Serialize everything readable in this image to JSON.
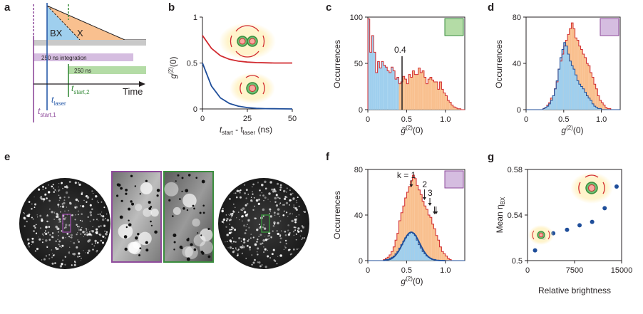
{
  "letters": {
    "a": "a",
    "b": "b",
    "c": "c",
    "d": "d",
    "e": "e",
    "f": "f",
    "g": "g"
  },
  "colors": {
    "purple": "#8e4a9b",
    "green": "#3a8d3d",
    "blue": "#2a5caa",
    "red": "#d12a2f",
    "orange_fill": "#f9c08f",
    "blue_fill": "#9fcfee",
    "purple_fill": "#d5bde0",
    "green_fill": "#b4dca6",
    "navy": "#1f4e9a"
  },
  "panel_a": {
    "bx": "BX",
    "x": "X",
    "integration": "250 ns integration",
    "green_bar": "250 ns",
    "t_laser": "t",
    "t_laser_sub": "laser",
    "t_start2": "t",
    "t_start2_sub": "start,2",
    "t_start1": "t",
    "t_start1_sub": "start,1",
    "time": "Time"
  },
  "panel_b": {
    "ylabel": "g",
    "ylabel_sup": "(2)",
    "ylabel_tail": "(0)",
    "xlabel_t": "t",
    "xlabel_start": "start",
    "xlabel_minus": " - t",
    "xlabel_laser": "laser",
    "xlabel_unit": " (ns)",
    "yticks": [
      "1",
      "0.5",
      "0"
    ],
    "xticks": [
      "0",
      "25",
      "50"
    ]
  },
  "panel_c": {
    "ylabel": "Occurrences",
    "xlabel": "g̃",
    "xlabel_sup": "(2)",
    "xlabel_tail": "(0)",
    "threshold": "0.4",
    "yticks": [
      "100",
      "50",
      "0"
    ],
    "xticks": [
      "0",
      "0.5",
      "1.0"
    ]
  },
  "panel_d": {
    "ylabel": "Occurrences",
    "xlabel": "g",
    "xlabel_sup": "(2)",
    "xlabel_tail": "(0)",
    "yticks": [
      "80",
      "40",
      "0"
    ],
    "xticks": [
      "0",
      "0.5",
      "1.0"
    ]
  },
  "panel_f": {
    "ylabel": "Occurrences",
    "xlabel": "g",
    "xlabel_sup": "(2)",
    "xlabel_tail": "(0)",
    "k1": "k = 1",
    "k2": "2",
    "k3": "3",
    "yticks": [
      "80",
      "40",
      "0"
    ],
    "xticks": [
      "0",
      "0.5",
      "1.0"
    ]
  },
  "panel_g": {
    "ylabel": "Mean η",
    "ylabel_sub": "BX",
    "xlabel": "Relative brightness",
    "yticks": [
      "0.58",
      "0.54",
      "0.5"
    ],
    "xticks": [
      "0",
      "7500",
      "15000"
    ]
  },
  "chart_data": [
    {
      "panel": "b",
      "type": "line",
      "xlabel": "t_start - t_laser (ns)",
      "ylabel": "g(2)(0)",
      "xlim": [
        0,
        50
      ],
      "ylim": [
        0,
        1
      ],
      "series": [
        {
          "color": "#d12a2f",
          "x": [
            0,
            5,
            10,
            15,
            20,
            25,
            30,
            35,
            40,
            45,
            50
          ],
          "y": [
            0.8,
            0.66,
            0.58,
            0.54,
            0.52,
            0.51,
            0.505,
            0.502,
            0.5,
            0.5,
            0.5
          ]
        },
        {
          "color": "#1f4e9a",
          "x": [
            0,
            5,
            10,
            15,
            20,
            25,
            30,
            35,
            40,
            45,
            50
          ],
          "y": [
            0.5,
            0.25,
            0.12,
            0.06,
            0.03,
            0.015,
            0.007,
            0.003,
            0.002,
            0.001,
            0.0
          ]
        }
      ]
    },
    {
      "panel": "c",
      "type": "bar",
      "xlabel": "g~(2)(0)",
      "ylabel": "Occurrences",
      "xlim": [
        0,
        1.25
      ],
      "ylim": [
        0,
        100
      ],
      "threshold": 0.4,
      "bin_width": 0.025,
      "values": [
        98,
        62,
        80,
        62,
        40,
        52,
        45,
        52,
        48,
        46,
        42,
        40,
        46,
        42,
        33,
        35,
        28,
        30,
        36,
        33,
        28,
        38,
        35,
        42,
        38,
        38,
        45,
        40,
        42,
        35,
        28,
        33,
        35,
        32,
        30,
        30,
        22,
        30,
        22,
        18,
        15,
        10,
        8,
        5,
        3,
        2,
        1,
        1,
        0,
        0
      ]
    },
    {
      "panel": "d",
      "type": "bar",
      "xlabel": "g(2)(0)",
      "ylabel": "Occurrences",
      "xlim": [
        0,
        1.25
      ],
      "ylim": [
        0,
        80
      ],
      "bin_width": 0.025,
      "series": [
        {
          "name": "",
          "color": "#d12a2f",
          "values": [
            0,
            0,
            0,
            0,
            0,
            0,
            0,
            0,
            0,
            1,
            2,
            4,
            6,
            10,
            12,
            18,
            24,
            35,
            42,
            48,
            55,
            60,
            65,
            70,
            75,
            70,
            62,
            60,
            55,
            52,
            48,
            45,
            40,
            38,
            32,
            28,
            22,
            18,
            12,
            8,
            6,
            4,
            2,
            1,
            1,
            0,
            0,
            0,
            0,
            0
          ]
        },
        {
          "name": "",
          "color": "#1f4e9a",
          "values": [
            0,
            0,
            0,
            0,
            0,
            0,
            0,
            0,
            0,
            1,
            2,
            3,
            5,
            8,
            12,
            18,
            25,
            35,
            45,
            52,
            58,
            55,
            48,
            42,
            38,
            35,
            30,
            25,
            22,
            20,
            18,
            15,
            12,
            10,
            8,
            5,
            3,
            2,
            1,
            1,
            0,
            0,
            0,
            0,
            0,
            0,
            0,
            0,
            0,
            0
          ]
        }
      ]
    },
    {
      "panel": "f",
      "type": "bar",
      "xlabel": "g(2)(0)",
      "ylabel": "Occurrences",
      "xlim": [
        0,
        1.25
      ],
      "ylim": [
        0,
        80
      ],
      "bin_width": 0.025,
      "annotations": [
        {
          "label": "k = 1",
          "x": 0.56
        },
        {
          "label": "2",
          "x": 0.73
        },
        {
          "label": "3",
          "x": 0.8
        },
        {
          "label": "",
          "x": 0.86
        },
        {
          "label": "",
          "x": 0.88
        }
      ],
      "series": [
        {
          "name": "",
          "color": "#d12a2f",
          "values": [
            0,
            0,
            0,
            0,
            0,
            0,
            0,
            0,
            1,
            2,
            3,
            5,
            8,
            12,
            18,
            24,
            35,
            42,
            48,
            55,
            60,
            65,
            70,
            75,
            72,
            66,
            62,
            58,
            52,
            48,
            45,
            40,
            38,
            32,
            28,
            22,
            18,
            12,
            8,
            6,
            4,
            2,
            1,
            0,
            0,
            0,
            0,
            0,
            0,
            0
          ]
        },
        {
          "name": "",
          "color": "#1f4e9a",
          "values": [
            0,
            0,
            0,
            0,
            0,
            0,
            0,
            0,
            0,
            1,
            1,
            2,
            3,
            4,
            6,
            8,
            11,
            14,
            17,
            20,
            22,
            24,
            25,
            24,
            22,
            18,
            14,
            11,
            8,
            6,
            4,
            3,
            2,
            1,
            1,
            0,
            0,
            0,
            0,
            0,
            0,
            0,
            0,
            0,
            0,
            0,
            0,
            0,
            0,
            0
          ]
        }
      ]
    },
    {
      "panel": "g",
      "type": "scatter",
      "xlabel": "Relative brightness",
      "ylabel": "Mean ηBX",
      "xlim": [
        0,
        15000
      ],
      "ylim": [
        0.5,
        0.58
      ],
      "x": [
        1200,
        2600,
        4100,
        6300,
        8300,
        10300,
        12300,
        14200
      ],
      "y": [
        0.509,
        0.52,
        0.524,
        0.527,
        0.531,
        0.534,
        0.546,
        0.565
      ]
    }
  ]
}
